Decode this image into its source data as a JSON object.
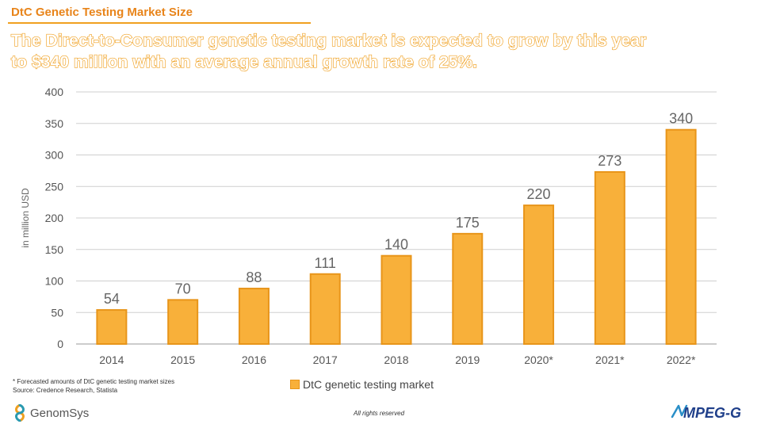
{
  "header": {
    "title": "DtC Genetic Testing Market Size",
    "headline_line1": "The Direct-to-Consumer genetic testing market is expected to grow by this year",
    "headline_line2": "to $340 million with an average annual growth rate of 25%."
  },
  "footnotes": {
    "line1": "* Forecasted amounts of DtC genetic testing market sizes",
    "line2": "Source: Credence Research, Statista"
  },
  "footer": {
    "company": "GenomSys",
    "rights": "All rights reserved",
    "brand": "MPEG-G"
  },
  "colors": {
    "accent": "#f0a020",
    "bar_fill": "#f8b03a",
    "bar_stroke": "#e8951a",
    "title": "#e8841a"
  },
  "chart_data": {
    "type": "bar",
    "categories": [
      "2014",
      "2015",
      "2016",
      "2017",
      "2018",
      "2019",
      "2020*",
      "2021*",
      "2022*"
    ],
    "series": [
      {
        "name": "DtC genetic testing market",
        "values": [
          54,
          70,
          88,
          111,
          140,
          175,
          220,
          273,
          340
        ]
      }
    ],
    "data_labels": [
      "54",
      "70",
      "88",
      "111",
      "140",
      "175",
      "220",
      "273",
      "340"
    ],
    "ylabel": "in million USD",
    "xlabel": "",
    "ylim": [
      0,
      400
    ],
    "yticks": [
      0,
      50,
      100,
      150,
      200,
      250,
      300,
      350,
      400
    ],
    "grid": true,
    "legend_position": "bottom"
  }
}
